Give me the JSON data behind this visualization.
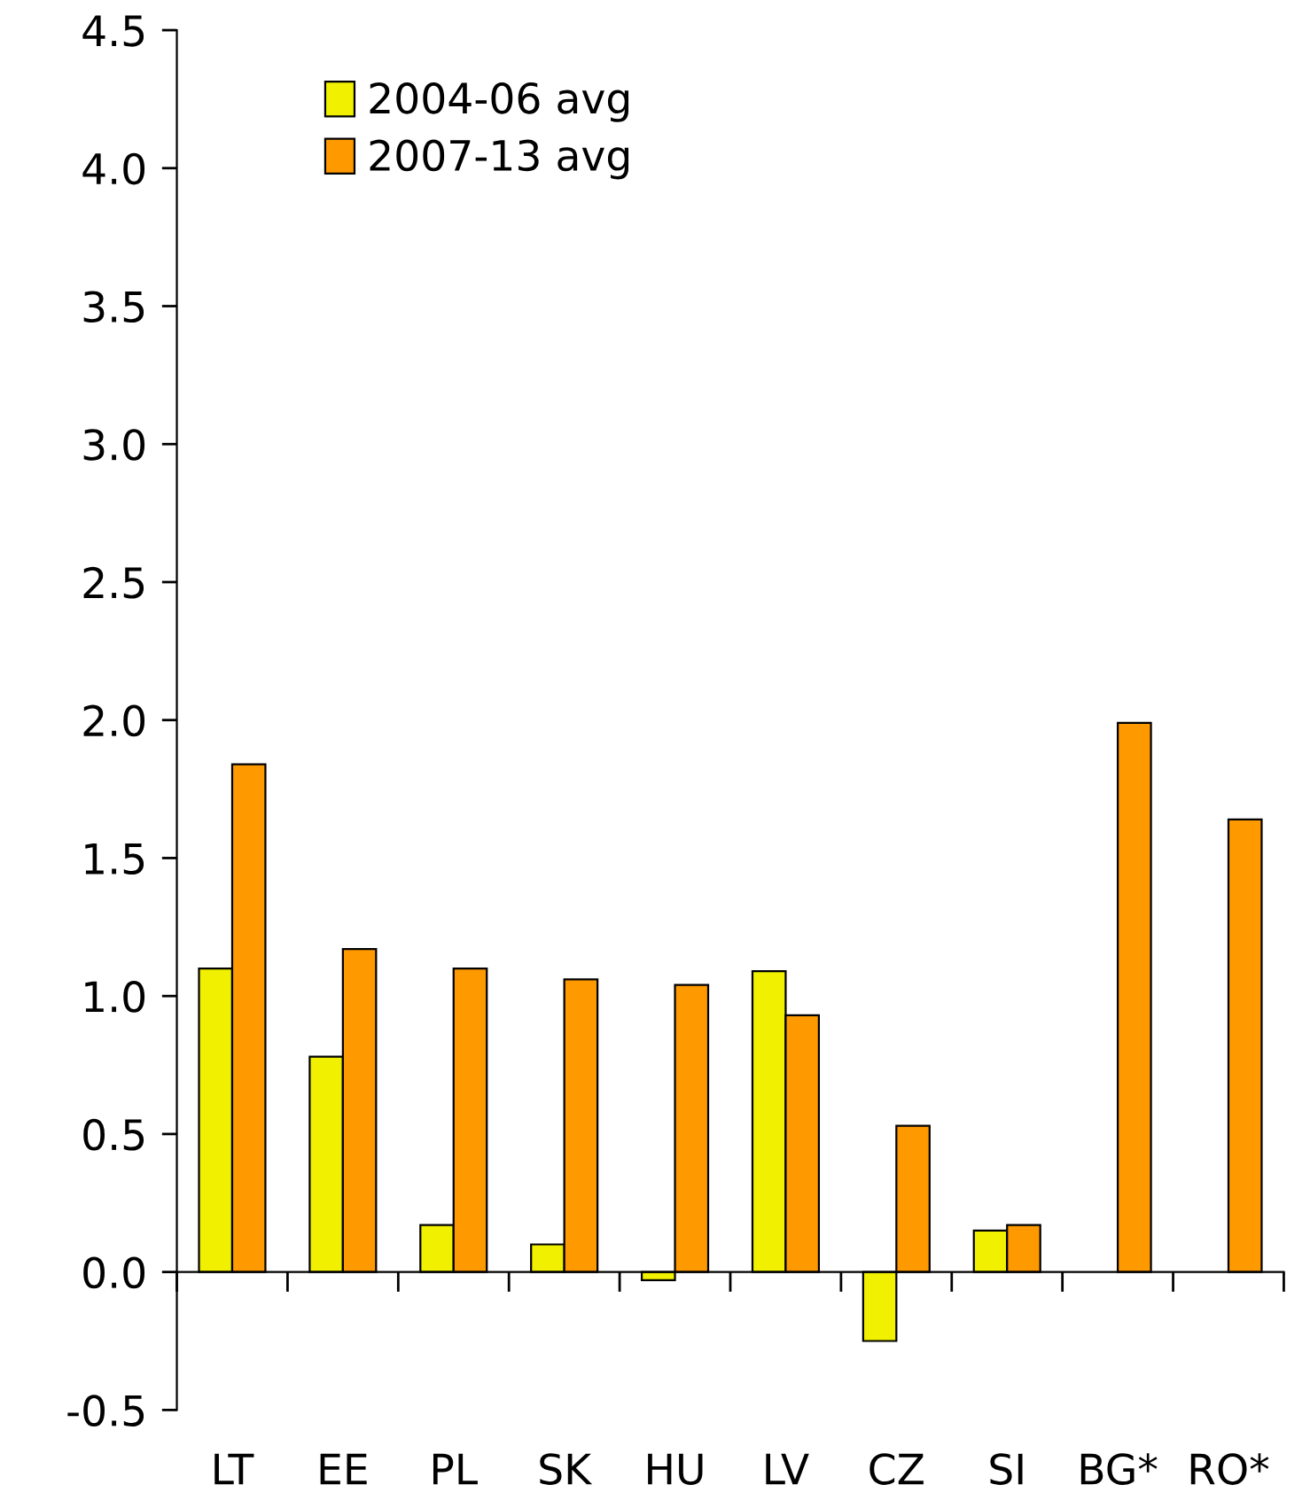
{
  "chart_data": {
    "type": "bar",
    "categories": [
      "LT",
      "EE",
      "PL",
      "SK",
      "HU",
      "LV",
      "CZ",
      "SI",
      "BG*",
      "RO*"
    ],
    "series": [
      {
        "name": "2004-06 avg",
        "color": "#f0f000",
        "values": [
          1.1,
          0.78,
          0.17,
          0.1,
          -0.03,
          1.09,
          -0.25,
          0.15,
          null,
          null
        ]
      },
      {
        "name": "2007-13 avg",
        "color": "#ff9900",
        "values": [
          1.84,
          1.17,
          1.1,
          1.06,
          1.04,
          0.93,
          0.53,
          0.17,
          1.99,
          1.64
        ]
      }
    ],
    "ylim": [
      -0.5,
      4.5
    ],
    "yticks": [
      {
        "value": -0.5,
        "label": "-0.5"
      },
      {
        "value": 0,
        "label": "0.0"
      },
      {
        "value": 0.5,
        "label": "0.5"
      },
      {
        "value": 1,
        "label": "1.0"
      },
      {
        "value": 1.5,
        "label": "1.5"
      },
      {
        "value": 2,
        "label": "2.0"
      },
      {
        "value": 2.5,
        "label": "2.5"
      },
      {
        "value": 3,
        "label": "3.0"
      },
      {
        "value": 3.5,
        "label": "3.5"
      },
      {
        "value": 4,
        "label": "4.0"
      },
      {
        "value": 4.5,
        "label": "4.5"
      }
    ],
    "legend": "top left"
  }
}
